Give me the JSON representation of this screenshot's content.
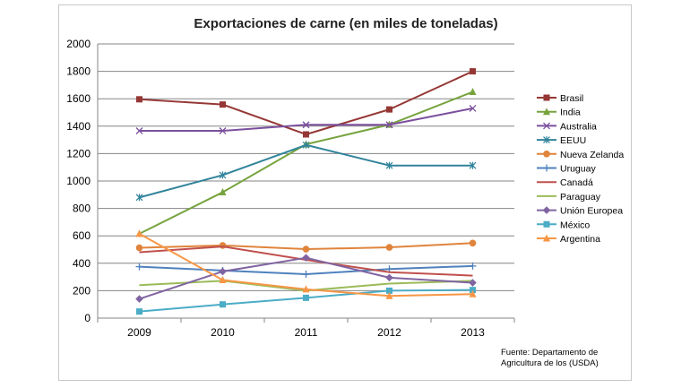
{
  "chart_data": {
    "type": "line",
    "title": "Exportaciones de carne (en miles de toneladas)",
    "xlabel": "",
    "ylabel": "",
    "x": [
      "2009",
      "2010",
      "2011",
      "2012",
      "2013"
    ],
    "ylim": [
      0,
      2000
    ],
    "yticks": [
      0,
      200,
      400,
      600,
      800,
      1000,
      1200,
      1400,
      1600,
      1800,
      2000
    ],
    "grid": "horizontal",
    "legend_position": "right",
    "series": [
      {
        "name": "Brasil",
        "color": "#953735",
        "marker": "square",
        "values": [
          1596,
          1558,
          1340,
          1522,
          1800
        ]
      },
      {
        "name": "India",
        "color": "#77a33e",
        "marker": "triangle",
        "values": [
          615,
          918,
          1268,
          1411,
          1650
        ]
      },
      {
        "name": "Australia",
        "color": "#7b4f9d",
        "marker": "x",
        "values": [
          1366,
          1366,
          1410,
          1410,
          1530
        ]
      },
      {
        "name": "EEUU",
        "color": "#31849b",
        "marker": "star",
        "values": [
          880,
          1043,
          1263,
          1113,
          1113
        ]
      },
      {
        "name": "Nueva Zelanda",
        "color": "#e0843c",
        "marker": "circle",
        "values": [
          513,
          530,
          503,
          516,
          547
        ]
      },
      {
        "name": "Uruguay",
        "color": "#4f81bd",
        "marker": "plus",
        "values": [
          375,
          347,
          320,
          358,
          380
        ]
      },
      {
        "name": "Canadá",
        "color": "#c0504d",
        "marker": "none",
        "values": [
          480,
          522,
          425,
          335,
          310
        ]
      },
      {
        "name": "Paraguay",
        "color": "#9bbb59",
        "marker": "none",
        "values": [
          240,
          272,
          200,
          252,
          272
        ]
      },
      {
        "name": "Unión Europea",
        "color": "#8064a2",
        "marker": "diamond",
        "values": [
          140,
          340,
          440,
          295,
          258
        ]
      },
      {
        "name": "México",
        "color": "#4bacc6",
        "marker": "square",
        "values": [
          48,
          100,
          148,
          200,
          205
        ]
      },
      {
        "name": "Argentina",
        "color": "#f79646",
        "marker": "triangle",
        "values": [
          615,
          278,
          210,
          162,
          175
        ]
      }
    ],
    "annotations": [
      "Fuente: Departamento de",
      "Agricultura de los (USDA)"
    ]
  }
}
